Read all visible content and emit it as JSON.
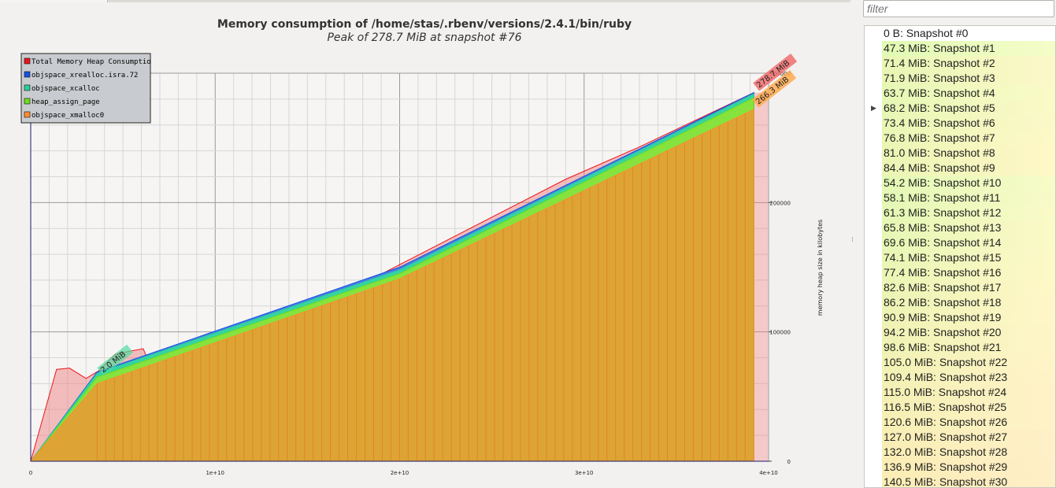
{
  "chart": {
    "title": "Memory consumption of /home/stas/.rbenv/versions/2.4.1/bin/ruby",
    "subtitle": "Peak of 278.7 MiB at snapshot #76",
    "ylabel": "memory heap size in kilobytes",
    "x_ticks": [
      "0",
      "1e+10",
      "2e+10",
      "3e+10",
      "4e+10"
    ],
    "y_ticks": [
      "0",
      "100000",
      "200000",
      "300000"
    ],
    "annotations": [
      "2.0 MiB",
      "278.7 MiB",
      "266.3 MiB"
    ],
    "legend": [
      {
        "label": "Total Memory Heap Consumptio",
        "color": "#e8161b"
      },
      {
        "label": "objspace_xrealloc.isra.72",
        "color": "#1453e0"
      },
      {
        "label": "objspace_xcalloc",
        "color": "#2bcf9a"
      },
      {
        "label": "heap_assign_page",
        "color": "#6fdd1f"
      },
      {
        "label": "objspace_xmalloc0",
        "color": "#ff8c2e"
      }
    ]
  },
  "chart_data": {
    "type": "area",
    "x_unit": "time",
    "y_unit": "kilobytes",
    "xlim": [
      0,
      40000000000.0
    ],
    "ylim": [
      0,
      300000
    ],
    "series": [
      {
        "name": "Total Memory Heap Consumptio",
        "x": [
          0,
          1400000000.0,
          2100000000.0,
          3000000000.0,
          3700000000.0,
          4600000000.0,
          6100000000.0,
          7000000000.0,
          20000000000.0,
          29000000000.0,
          33000000000.0,
          39200000000.0
        ],
        "y": [
          0,
          71000,
          72000,
          64000,
          70000,
          83000,
          87000,
          56000,
          152000,
          218000,
          243000,
          285000
        ]
      },
      {
        "name": "objspace_xrealloc.isra.72",
        "x": [
          0,
          3600000000.0,
          20000000000.0,
          39200000000.0
        ],
        "y": [
          0,
          69000,
          150000,
          285000
        ]
      },
      {
        "name": "objspace_xcalloc",
        "x": [
          0,
          3600000000.0,
          20000000000.0,
          39200000000.0
        ],
        "y": [
          0,
          68000,
          148000,
          284000
        ]
      },
      {
        "name": "heap_assign_page",
        "x": [
          0,
          3600000000.0,
          20000000000.0,
          39200000000.0
        ],
        "y": [
          0,
          65000,
          145000,
          281000
        ]
      },
      {
        "name": "objspace_xmalloc0",
        "x": [
          0,
          3600000000.0,
          20000000000.0,
          39200000000.0
        ],
        "y": [
          0,
          60000,
          141000,
          272000
        ]
      }
    ]
  },
  "filter": {
    "placeholder": "filter"
  },
  "snapshots": [
    {
      "label": "0 B: Snapshot #0",
      "frac": 0
    },
    {
      "label": "47.3 MiB: Snapshot #1",
      "frac": 0.17
    },
    {
      "label": "71.4 MiB: Snapshot #2",
      "frac": 0.26
    },
    {
      "label": "71.9 MiB: Snapshot #3",
      "frac": 0.26
    },
    {
      "label": "63.7 MiB: Snapshot #4",
      "frac": 0.23
    },
    {
      "label": "68.2 MiB: Snapshot #5",
      "frac": 0.24
    },
    {
      "label": "73.4 MiB: Snapshot #6",
      "frac": 0.26
    },
    {
      "label": "76.8 MiB: Snapshot #7",
      "frac": 0.28
    },
    {
      "label": "81.0 MiB: Snapshot #8",
      "frac": 0.29
    },
    {
      "label": "84.4 MiB: Snapshot #9",
      "frac": 0.3
    },
    {
      "label": "54.2 MiB: Snapshot #10",
      "frac": 0.19
    },
    {
      "label": "58.1 MiB: Snapshot #11",
      "frac": 0.21
    },
    {
      "label": "61.3 MiB: Snapshot #12",
      "frac": 0.22
    },
    {
      "label": "65.8 MiB: Snapshot #13",
      "frac": 0.24
    },
    {
      "label": "69.6 MiB: Snapshot #14",
      "frac": 0.25
    },
    {
      "label": "74.1 MiB: Snapshot #15",
      "frac": 0.27
    },
    {
      "label": "77.4 MiB: Snapshot #16",
      "frac": 0.28
    },
    {
      "label": "82.6 MiB: Snapshot #17",
      "frac": 0.3
    },
    {
      "label": "86.2 MiB: Snapshot #18",
      "frac": 0.31
    },
    {
      "label": "90.9 MiB: Snapshot #19",
      "frac": 0.33
    },
    {
      "label": "94.2 MiB: Snapshot #20",
      "frac": 0.34
    },
    {
      "label": "98.6 MiB: Snapshot #21",
      "frac": 0.35
    },
    {
      "label": "105.0 MiB: Snapshot #22",
      "frac": 0.38
    },
    {
      "label": "109.4 MiB: Snapshot #23",
      "frac": 0.39
    },
    {
      "label": "115.0 MiB: Snapshot #24",
      "frac": 0.41
    },
    {
      "label": "116.5 MiB: Snapshot #25",
      "frac": 0.42
    },
    {
      "label": "120.6 MiB: Snapshot #26",
      "frac": 0.43
    },
    {
      "label": "127.0 MiB: Snapshot #27",
      "frac": 0.46
    },
    {
      "label": "132.0 MiB: Snapshot #28",
      "frac": 0.47
    },
    {
      "label": "136.9 MiB: Snapshot #29",
      "frac": 0.49
    },
    {
      "label": "140.5 MiB: Snapshot #30",
      "frac": 0.5
    }
  ],
  "selected_index": 5
}
